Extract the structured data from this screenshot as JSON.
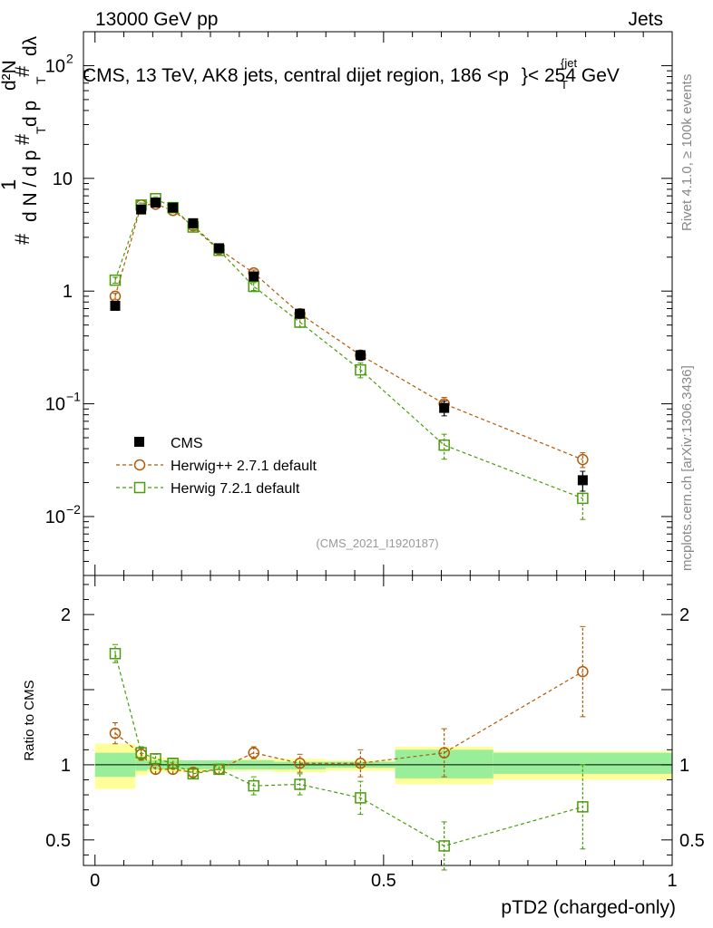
{
  "header": {
    "left_text": "13000 GeV pp",
    "right_text": "Jets"
  },
  "side_labels": {
    "rivet": "Rivet 4.1.0, ≥ 100k events",
    "mcplots": "mcplots.cern.ch [arXiv:1306.3436]"
  },
  "chart_data": [
    {
      "type": "scatter",
      "panel": "main",
      "title": "CMS, 13 TeV, AK8 jets, central dijet region, 186 <p_T^{jet}< 254 GeV",
      "title_parts": {
        "before": "CMS, 13 TeV, AK8 jets, central dijet region, 186 <p",
        "sub": "T",
        "sup": "{jet",
        "after": "}< 254 GeV"
      },
      "analysis_id": "(CMS_2021_I1920187)",
      "ylabel": "1/(dN/dp_T) d²N/(dp_T dλ)",
      "ylabel_parts": {
        "num": "1",
        "hash": "#",
        "dN": "d N / d p",
        "T": "T",
        "d2N": "d²N",
        "dpdl": "d p",
        "dl": "dλ"
      },
      "yscale": "log",
      "ylim": [
        0.003,
        200
      ],
      "xlim": [
        -0.02,
        1.0
      ],
      "ytick_labels": [
        {
          "value": 0.01,
          "base": "10",
          "exp": "−2"
        },
        {
          "value": 0.1,
          "base": "10",
          "exp": "−1"
        },
        {
          "value": 1,
          "base": "1",
          "exp": ""
        },
        {
          "value": 10,
          "base": "10",
          "exp": ""
        },
        {
          "value": 100,
          "base": "10",
          "exp": "2"
        }
      ],
      "legend_position": "middle-left",
      "series": [
        {
          "name": "CMS",
          "color": "#000000",
          "marker": "filled-square",
          "line": "none",
          "x": [
            0.035,
            0.08,
            0.105,
            0.135,
            0.17,
            0.215,
            0.275,
            0.355,
            0.46,
            0.605,
            0.845
          ],
          "y": [
            0.74,
            5.3,
            6.1,
            5.5,
            4.0,
            2.4,
            1.35,
            0.63,
            0.27,
            0.092,
            0.021
          ],
          "yerr_rel": [
            0.05,
            0.05,
            0.04,
            0.04,
            0.05,
            0.06,
            0.07,
            0.07,
            0.1,
            0.15,
            0.2
          ]
        },
        {
          "name": "Herwig++ 2.7.1 default",
          "color": "#b35806",
          "marker": "open-circle",
          "line": "dashed",
          "x": [
            0.035,
            0.08,
            0.105,
            0.135,
            0.17,
            0.215,
            0.275,
            0.355,
            0.46,
            0.605,
            0.845
          ],
          "y": [
            0.9,
            5.8,
            5.9,
            5.2,
            3.8,
            2.35,
            1.45,
            0.63,
            0.27,
            0.1,
            0.032
          ],
          "yerr_rel": [
            0.06,
            0.04,
            0.04,
            0.04,
            0.05,
            0.05,
            0.06,
            0.08,
            0.1,
            0.14,
            0.15
          ]
        },
        {
          "name": "Herwig 7.2.1 default",
          "color": "#4a9c0a",
          "marker": "open-square",
          "line": "dashed",
          "x": [
            0.035,
            0.08,
            0.105,
            0.135,
            0.17,
            0.215,
            0.275,
            0.355,
            0.46,
            0.605,
            0.845
          ],
          "y": [
            1.25,
            5.8,
            6.6,
            5.5,
            3.7,
            2.3,
            1.1,
            0.53,
            0.2,
            0.043,
            0.0145
          ],
          "yerr_rel": [
            0.06,
            0.04,
            0.04,
            0.04,
            0.05,
            0.06,
            0.08,
            0.1,
            0.15,
            0.25,
            0.35
          ]
        }
      ]
    },
    {
      "type": "scatter",
      "panel": "ratio",
      "xlabel": "pTD2 (charged-only)",
      "ylabel": "Ratio to CMS",
      "xlim": [
        -0.02,
        1.0
      ],
      "ylim": [
        0.33,
        2.26
      ],
      "xtick_labels": [
        {
          "value": 0,
          "label": "0"
        },
        {
          "value": 0.5,
          "label": "0.5"
        },
        {
          "value": 1,
          "label": "1"
        }
      ],
      "ytick_labels": [
        {
          "value": 0.5,
          "label": "0.5"
        },
        {
          "value": 1,
          "label": "1"
        },
        {
          "value": 2,
          "label": "2"
        }
      ],
      "reference_line": 1,
      "uncertainty_bands": [
        {
          "x": [
            0.0,
            0.07
          ],
          "stat": [
            0.92,
            1.08
          ],
          "total": [
            0.84,
            1.14
          ]
        },
        {
          "x": [
            0.07,
            0.09
          ],
          "stat": [
            0.96,
            1.04
          ],
          "total": [
            0.93,
            1.07
          ]
        },
        {
          "x": [
            0.09,
            0.12
          ],
          "stat": [
            0.97,
            1.03
          ],
          "total": [
            0.95,
            1.05
          ]
        },
        {
          "x": [
            0.12,
            0.15
          ],
          "stat": [
            0.97,
            1.03
          ],
          "total": [
            0.95,
            1.04
          ]
        },
        {
          "x": [
            0.15,
            0.19
          ],
          "stat": [
            0.97,
            1.03
          ],
          "total": [
            0.95,
            1.03
          ]
        },
        {
          "x": [
            0.19,
            0.24
          ],
          "stat": [
            0.97,
            1.03
          ],
          "total": [
            0.96,
            1.03
          ]
        },
        {
          "x": [
            0.24,
            0.31
          ],
          "stat": [
            0.97,
            1.03
          ],
          "total": [
            0.96,
            1.04
          ]
        },
        {
          "x": [
            0.31,
            0.4
          ],
          "stat": [
            0.97,
            1.02
          ],
          "total": [
            0.95,
            1.04
          ]
        },
        {
          "x": [
            0.4,
            0.52
          ],
          "stat": [
            0.98,
            1.02
          ],
          "total": [
            0.96,
            1.03
          ]
        },
        {
          "x": [
            0.52,
            0.69
          ],
          "stat": [
            0.91,
            1.1
          ],
          "total": [
            0.87,
            1.12
          ]
        },
        {
          "x": [
            0.69,
            1.0
          ],
          "stat": [
            0.94,
            1.08
          ],
          "total": [
            0.9,
            1.09
          ]
        }
      ],
      "series": [
        {
          "name": "Herwig++ 2.7.1 default",
          "color": "#b35806",
          "marker": "open-circle",
          "x": [
            0.035,
            0.08,
            0.105,
            0.135,
            0.17,
            0.215,
            0.275,
            0.355,
            0.46,
            0.605,
            0.845
          ],
          "y": [
            1.21,
            1.07,
            0.97,
            0.97,
            0.95,
            0.97,
            1.08,
            1.01,
            1.01,
            1.08,
            1.62
          ],
          "yerr": [
            0.07,
            0.04,
            0.03,
            0.03,
            0.03,
            0.03,
            0.04,
            0.06,
            0.09,
            0.16,
            0.3
          ]
        },
        {
          "name": "Herwig 7.2.1 default",
          "color": "#4a9c0a",
          "marker": "open-square",
          "x": [
            0.035,
            0.08,
            0.105,
            0.135,
            0.17,
            0.215,
            0.275,
            0.355,
            0.46,
            0.605,
            0.845
          ],
          "y": [
            1.74,
            1.08,
            1.04,
            1.01,
            0.94,
            0.97,
            0.86,
            0.87,
            0.78,
            0.46,
            0.72
          ],
          "yerr": [
            0.06,
            0.04,
            0.03,
            0.03,
            0.03,
            0.03,
            0.06,
            0.07,
            0.11,
            0.16,
            0.28
          ]
        }
      ]
    }
  ]
}
